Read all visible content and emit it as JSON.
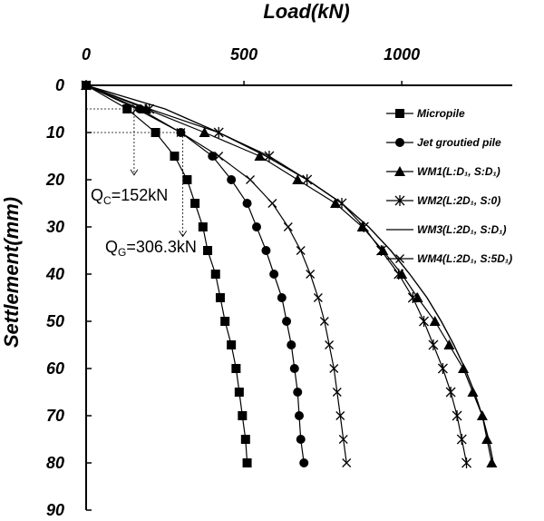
{
  "chart_data": {
    "type": "line",
    "xlabel": "Load(kN)",
    "ylabel": "Settlement(mm)",
    "xlim": [
      0,
      1350
    ],
    "ylim": [
      0,
      90
    ],
    "x_axis_position": "top",
    "y_axis_inverted": true,
    "xticks": [
      0,
      500,
      1000
    ],
    "yticks": [
      0,
      10,
      20,
      30,
      40,
      50,
      60,
      70,
      80,
      90
    ],
    "grid": false,
    "legend_placement": "right",
    "series": [
      {
        "name": "Micropile",
        "marker": "square",
        "points": [
          [
            0,
            0
          ],
          [
            130,
            5
          ],
          [
            220,
            10
          ],
          [
            280,
            15
          ],
          [
            320,
            20
          ],
          [
            345,
            25
          ],
          [
            370,
            30
          ],
          [
            385,
            35
          ],
          [
            410,
            40
          ],
          [
            425,
            45
          ],
          [
            440,
            50
          ],
          [
            460,
            55
          ],
          [
            475,
            60
          ],
          [
            485,
            65
          ],
          [
            495,
            70
          ],
          [
            505,
            75
          ],
          [
            510,
            80
          ]
        ]
      },
      {
        "name": "Jet groutied pile",
        "marker": "circle",
        "points": [
          [
            0,
            0
          ],
          [
            170,
            5
          ],
          [
            300,
            10
          ],
          [
            400,
            15
          ],
          [
            460,
            20
          ],
          [
            510,
            25
          ],
          [
            540,
            30
          ],
          [
            570,
            35
          ],
          [
            595,
            40
          ],
          [
            620,
            45
          ],
          [
            635,
            50
          ],
          [
            650,
            55
          ],
          [
            660,
            60
          ],
          [
            670,
            65
          ],
          [
            675,
            70
          ],
          [
            680,
            75
          ],
          [
            690,
            80
          ]
        ]
      },
      {
        "name": "WM1(L:D₁, S:D₁)",
        "marker": "triangle",
        "points": [
          [
            0,
            0
          ],
          [
            190,
            5
          ],
          [
            375,
            10
          ],
          [
            550,
            15
          ],
          [
            670,
            20
          ],
          [
            790,
            25
          ],
          [
            875,
            30
          ],
          [
            940,
            35
          ],
          [
            1000,
            40
          ],
          [
            1050,
            45
          ],
          [
            1105,
            50
          ],
          [
            1150,
            55
          ],
          [
            1195,
            60
          ],
          [
            1225,
            65
          ],
          [
            1255,
            70
          ],
          [
            1270,
            75
          ],
          [
            1285,
            80
          ]
        ]
      },
      {
        "name": "WM2(L:2D₁, S:0)",
        "marker": "asterisk",
        "points": [
          [
            0,
            0
          ],
          [
            200,
            5
          ],
          [
            420,
            10
          ],
          [
            580,
            15
          ],
          [
            700,
            20
          ],
          [
            810,
            25
          ],
          [
            880,
            30
          ],
          [
            935,
            35
          ],
          [
            990,
            40
          ],
          [
            1035,
            45
          ],
          [
            1070,
            50
          ],
          [
            1100,
            55
          ],
          [
            1130,
            60
          ],
          [
            1155,
            65
          ],
          [
            1175,
            70
          ],
          [
            1190,
            75
          ],
          [
            1205,
            80
          ]
        ]
      },
      {
        "name": "WM3(L:2D₁, S:D₁)",
        "marker": "none",
        "points": [
          [
            0,
            0
          ],
          [
            250,
            5
          ],
          [
            420,
            10
          ],
          [
            570,
            15
          ],
          [
            700,
            20
          ],
          [
            810,
            25
          ],
          [
            895,
            30
          ],
          [
            965,
            35
          ],
          [
            1025,
            40
          ],
          [
            1080,
            45
          ],
          [
            1125,
            50
          ],
          [
            1165,
            55
          ],
          [
            1200,
            60
          ],
          [
            1230,
            65
          ],
          [
            1255,
            70
          ],
          [
            1275,
            75
          ],
          [
            1290,
            80
          ]
        ]
      },
      {
        "name": "WM4(L:2D₁, S:5D₁)",
        "marker": "x",
        "points": [
          [
            0,
            0
          ],
          [
            160,
            5
          ],
          [
            300,
            10
          ],
          [
            420,
            15
          ],
          [
            520,
            20
          ],
          [
            590,
            25
          ],
          [
            640,
            30
          ],
          [
            680,
            35
          ],
          [
            710,
            40
          ],
          [
            735,
            45
          ],
          [
            755,
            50
          ],
          [
            770,
            55
          ],
          [
            785,
            60
          ],
          [
            795,
            65
          ],
          [
            805,
            70
          ],
          [
            815,
            75
          ],
          [
            825,
            80
          ]
        ]
      }
    ],
    "annotations": [
      {
        "main": "Q",
        "sub": "C",
        "rest": "=152kN",
        "x": 152,
        "y_from": 5,
        "y_to": 19
      },
      {
        "main": "Q",
        "sub": "G",
        "rest": "=306.3kN",
        "x": 306.3,
        "y_from": 10,
        "y_to": 32
      }
    ]
  }
}
